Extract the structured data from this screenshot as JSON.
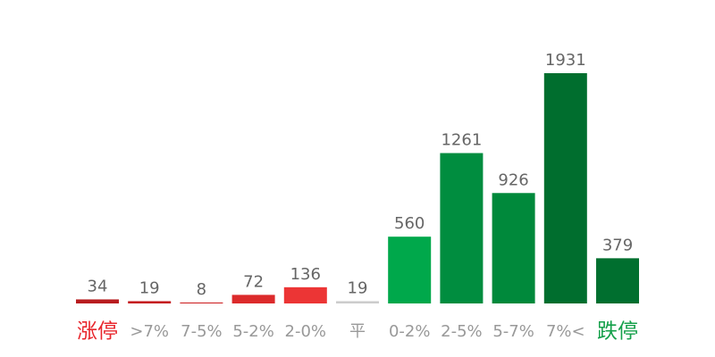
{
  "chart_data": {
    "type": "bar",
    "categories": [
      "涨停",
      ">7%",
      "7-5%",
      "5-2%",
      "2-0%",
      "平",
      "0-2%",
      "2-5%",
      "5-7%",
      "7%<",
      "跌停"
    ],
    "values": [
      34,
      19,
      8,
      72,
      136,
      19,
      560,
      1261,
      926,
      1931,
      379
    ],
    "colors": [
      "#b81c1f",
      "#c4181d",
      "#cc1f21",
      "#dc2a2b",
      "#ec3535",
      "#cccccc",
      "#00a84b",
      "#008d3f",
      "#00893b",
      "#006e2e",
      "#006f2f"
    ],
    "label_colors": [
      "#e8262c",
      "#999999",
      "#999999",
      "#999999",
      "#999999",
      "#999999",
      "#999999",
      "#999999",
      "#999999",
      "#999999",
      "#14a04a"
    ]
  }
}
